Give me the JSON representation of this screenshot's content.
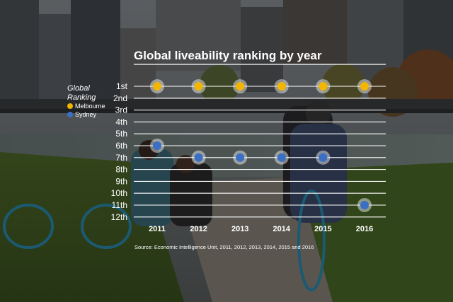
{
  "chart_data": {
    "type": "scatter",
    "title": "Global liveability ranking by year",
    "legend_title": [
      "Global",
      "Ranking"
    ],
    "legend_position": "left",
    "x": [
      "2011",
      "2012",
      "2013",
      "2014",
      "2015",
      "2016"
    ],
    "y_ticks": [
      "1st",
      "2nd",
      "3rd",
      "4th",
      "5th",
      "6th",
      "7th",
      "8th",
      "9th",
      "10th",
      "11th",
      "12th"
    ],
    "ylim": [
      1,
      12
    ],
    "y_inverted": true,
    "grid": true,
    "series": [
      {
        "name": "Melbourne",
        "color": "#f2b600",
        "values": [
          1,
          1,
          1,
          1,
          1,
          1
        ]
      },
      {
        "name": "Sydney",
        "color": "#3a6fc4",
        "values": [
          6,
          7,
          7,
          7,
          7,
          11
        ]
      }
    ],
    "source": "Source: Economic Intelligence Unit, 2011, 2012, 2013, 2014, 2015 and 2016"
  }
}
